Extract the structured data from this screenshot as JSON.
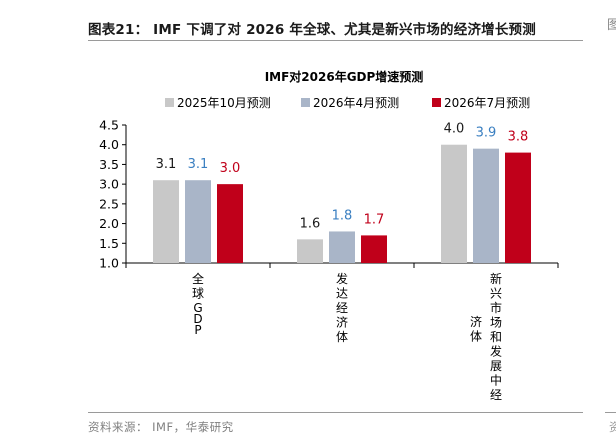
{
  "page": {
    "title": "图表21： IMF 下调了对 2026 年全球、尤其是新兴市场的经济增长预测",
    "edge_mark": "图",
    "source": "资料来源：  IMF，华泰研究",
    "edge_mark_bottom": "资"
  },
  "chart_data": {
    "type": "bar",
    "title": "IMF对2026年GDP增速预测",
    "categories": [
      "全球GDP",
      "发达经济体",
      "新兴市场和发展中经济体"
    ],
    "category_label_columns": [
      [
        "全球GDP"
      ],
      [
        "发达经济体"
      ],
      [
        "新兴市场和发展中经",
        "济体"
      ]
    ],
    "series": [
      {
        "name": "2025年10月预测",
        "values": [
          3.1,
          1.6,
          4.0
        ],
        "color": "#c8c8c8",
        "label_color": "#1a1a1a"
      },
      {
        "name": "2026年4月预测",
        "values": [
          3.1,
          1.8,
          3.9
        ],
        "color": "#a9b5c8",
        "label_color": "#3a7fc1"
      },
      {
        "name": "2026年7月预测",
        "values": [
          3.0,
          1.7,
          3.8
        ],
        "color": "#c0001a",
        "label_color": "#c0001a"
      }
    ],
    "ylim": [
      1.0,
      4.5
    ],
    "yticks": [
      "1.0",
      "1.5",
      "2.0",
      "2.5",
      "3.0",
      "3.5",
      "4.0",
      "4.5"
    ],
    "legend_position": "top",
    "grid": false,
    "xlabel": "",
    "ylabel": ""
  }
}
